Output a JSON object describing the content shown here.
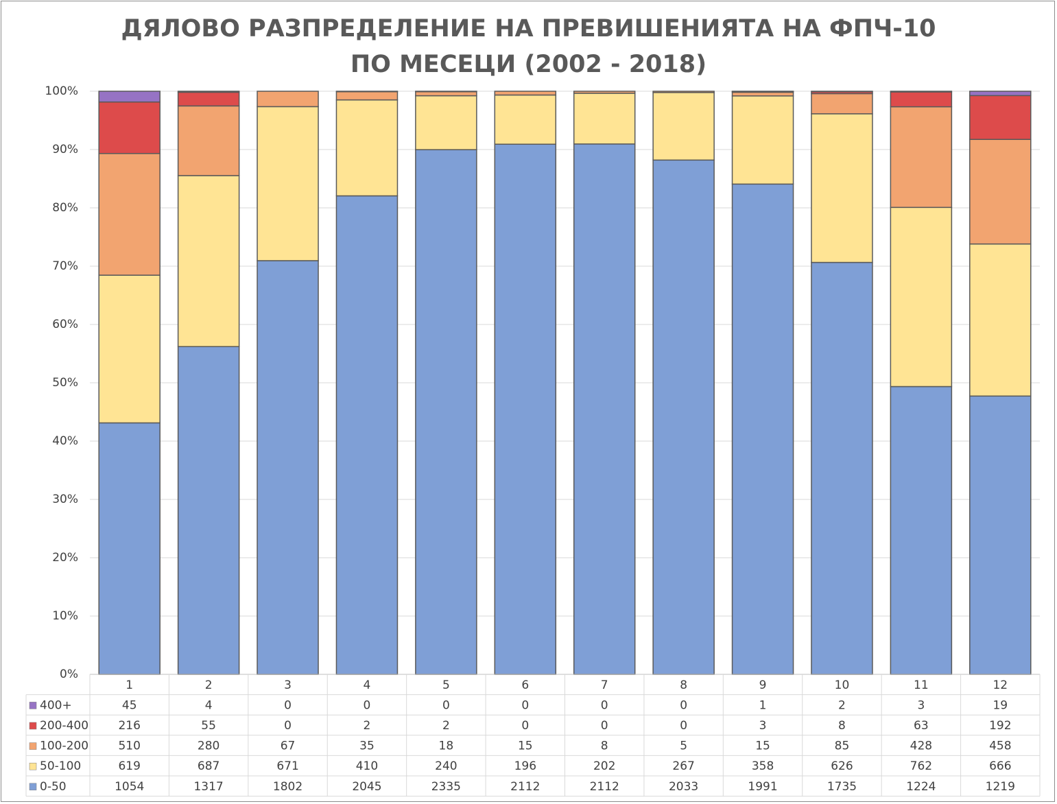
{
  "chart_data": {
    "type": "bar",
    "stacking": "percent",
    "title": "ДЯЛОВО РАЗПРЕДЕЛЕНИЕ НА ПРЕВИШЕНИЯТА НА ФПЧ-10\nПО МЕСЕЦИ (2002 - 2018)",
    "xlabel": "",
    "ylabel": "",
    "ylim": [
      0,
      100
    ],
    "yticks": [
      "0%",
      "10%",
      "20%",
      "30%",
      "40%",
      "50%",
      "60%",
      "70%",
      "80%",
      "90%",
      "100%"
    ],
    "grid": true,
    "legend_position": "data-table",
    "categories": [
      "1",
      "2",
      "3",
      "4",
      "5",
      "6",
      "7",
      "8",
      "9",
      "10",
      "11",
      "12"
    ],
    "series": [
      {
        "name": "0-50",
        "color": "#7f9fd6",
        "values": [
          1054,
          1317,
          1802,
          2045,
          2335,
          2112,
          2112,
          2033,
          1991,
          1735,
          1224,
          1219
        ]
      },
      {
        "name": "50-100",
        "color": "#ffe494",
        "values": [
          619,
          687,
          671,
          410,
          240,
          196,
          202,
          267,
          358,
          626,
          762,
          666
        ]
      },
      {
        "name": "100-200",
        "color": "#f2a470",
        "values": [
          510,
          280,
          67,
          35,
          18,
          15,
          8,
          5,
          15,
          85,
          428,
          458
        ]
      },
      {
        "name": "200-400",
        "color": "#dd4b4b",
        "values": [
          216,
          55,
          0,
          2,
          2,
          0,
          0,
          0,
          3,
          8,
          63,
          192
        ]
      },
      {
        "name": "400+",
        "color": "#9673c4",
        "values": [
          45,
          4,
          0,
          0,
          0,
          0,
          0,
          0,
          1,
          2,
          3,
          19
        ]
      }
    ],
    "table_row_order": [
      "400+",
      "200-400",
      "100-200",
      "50-100",
      "0-50"
    ]
  }
}
